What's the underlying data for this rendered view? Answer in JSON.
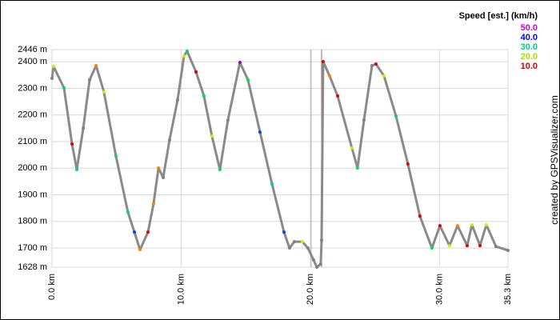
{
  "chart_data": {
    "type": "line",
    "legend_title": "Speed [est.] (km/h)",
    "legend": [
      {
        "value": 50,
        "label": "50.0",
        "color": "#cc00cc"
      },
      {
        "value": 40,
        "label": "40.0",
        "color": "#0000ee"
      },
      {
        "value": 30,
        "label": "30.0",
        "color": "#00cc88"
      },
      {
        "value": 20,
        "label": "20.0",
        "color": "#aadd00"
      },
      {
        "value": 10,
        "label": "10.0",
        "color": "#dd0000"
      }
    ],
    "credit": "created by GPSVisualizer.com",
    "line_color": "#8a8a8a",
    "x": [
      0,
      0.12,
      0.93,
      1.55,
      1.92,
      2.42,
      2.91,
      3.41,
      4.02,
      4.95,
      5.88,
      6.38,
      6.81,
      7.43,
      7.86,
      8.24,
      8.61,
      9.1,
      9.72,
      10.22,
      10.46,
      11.15,
      11.76,
      12.38,
      13.0,
      13.62,
      14.55,
      15.17,
      16.1,
      17.03,
      17.96,
      18.39,
      18.76,
      19.38,
      19.81,
      20.25,
      20.5,
      20.8,
      20.87,
      20.99,
      21.49,
      22.11,
      23.22,
      23.65,
      24.15,
      24.77,
      25.08,
      25.7,
      26.63,
      27.55,
      28.48,
      29.41,
      30.03,
      30.77,
      31.39,
      32.14,
      32.51,
      33.13,
      33.62,
      34.37,
      35.3
    ],
    "values": [
      2338,
      2383,
      2302,
      2091,
      1995,
      2151,
      2332,
      2386,
      2287,
      2046,
      1835,
      1760,
      1694,
      1760,
      1866,
      2001,
      1965,
      2106,
      2257,
      2422,
      2440,
      2362,
      2272,
      2121,
      1995,
      2181,
      2398,
      2332,
      2136,
      1941,
      1760,
      1700,
      1724,
      1724,
      1700,
      1655,
      1628,
      1640,
      1730,
      2401,
      2347,
      2272,
      2076,
      2001,
      2181,
      2386,
      2392,
      2347,
      2196,
      2016,
      1820,
      1700,
      1784,
      1709,
      1784,
      1709,
      1787,
      1709,
      1787,
      1706,
      1691
    ],
    "colors": [
      "#808080",
      "#ccee00",
      "#00dd55",
      "#e00000",
      "#00ccaa",
      "#808080",
      "#808080",
      "#ff8000",
      "#ccee00",
      "#00dd55",
      "#00dd55",
      "#0044ff",
      "#ff8000",
      "#e00000",
      "#ff8000",
      "#ff8000",
      "#808080",
      "#808080",
      "#808080",
      "#ccee00",
      "#00dd55",
      "#e00000",
      "#00dd55",
      "#ccee00",
      "#00dd55",
      "#808080",
      "#9900cc",
      "#00dd55",
      "#0044ff",
      "#00ccaa",
      "#0044ff",
      "#808080",
      "#808080",
      "#ccee00",
      "#808080",
      "#808080",
      "#808080",
      "#808080",
      "#808080",
      "#e00000",
      "#ff8000",
      "#e00000",
      "#ccee00",
      "#00dd55",
      "#808080",
      "#808080",
      "#e00000",
      "#ccee00",
      "#00dd55",
      "#e00000",
      "#e00000",
      "#00dd55",
      "#e00000",
      "#ccee00",
      "#ff8000",
      "#e00000",
      "#ccee00",
      "#e00000",
      "#ccee00",
      "#808080",
      "#808080"
    ],
    "vlines": [
      {
        "x": 20.06,
        "color": "#b0b0b0"
      },
      {
        "x": 20.87,
        "color": "#c06060"
      }
    ],
    "xlim": [
      0,
      35.3
    ],
    "xticks": [
      {
        "value": 0,
        "label": "0.0 km"
      },
      {
        "value": 10,
        "label": "10.0 km"
      },
      {
        "value": 20,
        "label": "20.0 km"
      },
      {
        "value": 30,
        "label": "30.0 km"
      },
      {
        "value": 35.3,
        "label": "35.3 km"
      }
    ],
    "ylim": [
      1628,
      2446
    ],
    "yticks": [
      {
        "value": 1628,
        "label": "1628 m"
      },
      {
        "value": 1700,
        "label": "1700 m"
      },
      {
        "value": 1800,
        "label": "1800 m"
      },
      {
        "value": 1900,
        "label": "1900 m"
      },
      {
        "value": 2000,
        "label": "2000 m"
      },
      {
        "value": 2100,
        "label": "2100 m"
      },
      {
        "value": 2200,
        "label": "2200 m"
      },
      {
        "value": 2300,
        "label": "2300 m"
      },
      {
        "value": 2400,
        "label": "2400 m"
      },
      {
        "value": 2446,
        "label": "2446 m"
      }
    ],
    "grid": true
  }
}
